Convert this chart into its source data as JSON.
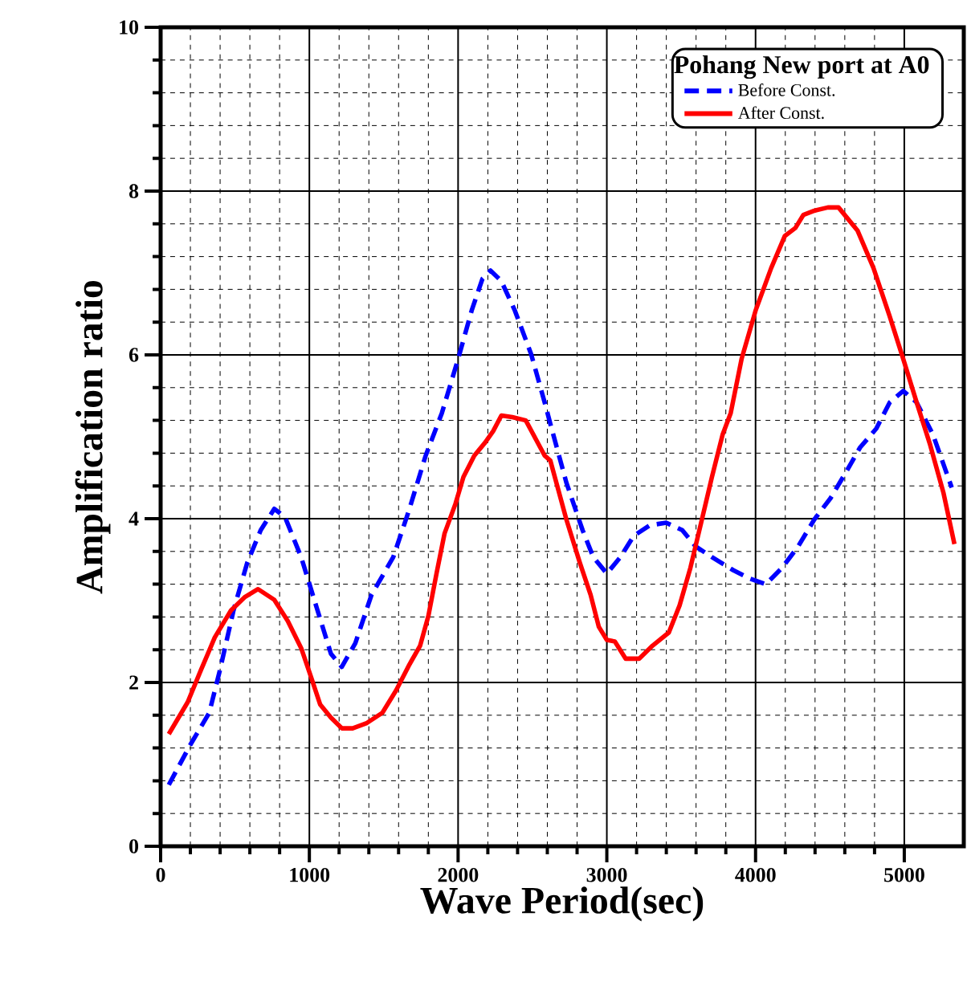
{
  "chart_data": {
    "type": "line",
    "xlabel": "Wave Period(sec)",
    "ylabel": "Amplification ratio",
    "legend_title": "Pohang New port at A0",
    "xlim": [
      0,
      5400
    ],
    "ylim": [
      0,
      10
    ],
    "xticks": [
      0,
      1000,
      2000,
      3000,
      4000,
      5000
    ],
    "yticks": [
      0,
      2,
      4,
      6,
      8,
      10
    ],
    "grid": true,
    "legend": "top right",
    "series": [
      {
        "name": "Before Const.",
        "color": "#0000ff",
        "line_style": "dashed",
        "x": [
          55,
          200,
          327,
          400,
          490,
          582,
          673,
          764,
          836,
          945,
          1055,
          1145,
          1218,
          1309,
          1418,
          1564,
          1673,
          1782,
          1891,
          2000,
          2091,
          2164,
          2218,
          2291,
          2382,
          2491,
          2582,
          2620,
          2728,
          2837,
          2909,
          3000,
          3091,
          3181,
          3290,
          3399,
          3507,
          3598,
          3707,
          3851,
          3960,
          4069,
          4178,
          4286,
          4395,
          4504,
          4612,
          4703,
          4812,
          4902,
          4993,
          5083,
          5192,
          5319
        ],
        "values": [
          0.75,
          1.24,
          1.63,
          2.16,
          2.88,
          3.46,
          3.86,
          4.12,
          4.02,
          3.53,
          2.88,
          2.35,
          2.19,
          2.48,
          3.07,
          3.53,
          4.12,
          4.77,
          5.29,
          5.95,
          6.54,
          6.93,
          7.03,
          6.9,
          6.54,
          6.01,
          5.42,
          5.16,
          4.44,
          3.86,
          3.53,
          3.33,
          3.53,
          3.79,
          3.92,
          3.95,
          3.86,
          3.66,
          3.53,
          3.37,
          3.27,
          3.2,
          3.4,
          3.66,
          3.99,
          4.25,
          4.58,
          4.87,
          5.1,
          5.42,
          5.56,
          5.42,
          5.03,
          4.38
        ]
      },
      {
        "name": "After Const.",
        "color": "#ff0000",
        "line_style": "solid",
        "x": [
          55,
          182,
          273,
          364,
          473,
          564,
          655,
          764,
          855,
          945,
          1018,
          1073,
          1145,
          1218,
          1291,
          1382,
          1491,
          1582,
          1673,
          1745,
          1800,
          1855,
          1909,
          1982,
          2036,
          2109,
          2182,
          2236,
          2291,
          2364,
          2455,
          2582,
          2620,
          2728,
          2819,
          2891,
          2946,
          3000,
          3054,
          3127,
          3217,
          3308,
          3417,
          3489,
          3562,
          3634,
          3707,
          3779,
          3833,
          3906,
          4000,
          4105,
          4196,
          4268,
          4322,
          4395,
          4486,
          4558,
          4612,
          4685,
          4793,
          4902,
          4993,
          5083,
          5174,
          5264,
          5337
        ],
        "values": [
          1.37,
          1.76,
          2.16,
          2.55,
          2.88,
          3.04,
          3.14,
          3.01,
          2.75,
          2.42,
          2.03,
          1.73,
          1.57,
          1.44,
          1.44,
          1.5,
          1.63,
          1.9,
          2.22,
          2.45,
          2.81,
          3.33,
          3.82,
          4.18,
          4.51,
          4.77,
          4.93,
          5.07,
          5.26,
          5.24,
          5.2,
          4.77,
          4.71,
          3.99,
          3.46,
          3.07,
          2.68,
          2.52,
          2.5,
          2.29,
          2.29,
          2.45,
          2.61,
          2.94,
          3.4,
          3.95,
          4.51,
          5.03,
          5.29,
          5.95,
          6.54,
          7.06,
          7.45,
          7.55,
          7.71,
          7.76,
          7.8,
          7.8,
          7.68,
          7.52,
          7.06,
          6.47,
          5.95,
          5.42,
          4.9,
          4.31,
          3.69
        ]
      }
    ]
  }
}
